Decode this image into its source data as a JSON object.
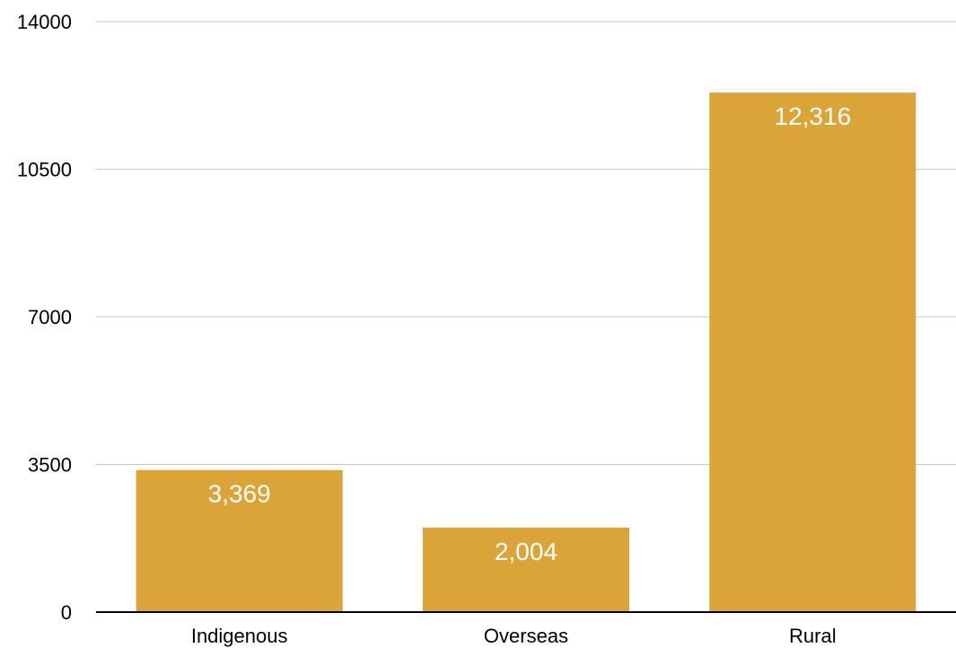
{
  "chart_data": {
    "type": "bar",
    "categories": [
      "Indigenous",
      "Overseas",
      "Rural"
    ],
    "values": [
      3369,
      2004,
      12316
    ],
    "value_labels": [
      "3,369",
      "2,004",
      "12,316"
    ],
    "y_ticks": [
      "0",
      "3500",
      "7000",
      "10500",
      "14000"
    ],
    "ylim": [
      0,
      14000
    ],
    "grid": true,
    "legend": "none",
    "bar_color": "#dba439",
    "label_color": "#ffffff",
    "title": "",
    "xlabel": "",
    "ylabel": ""
  }
}
